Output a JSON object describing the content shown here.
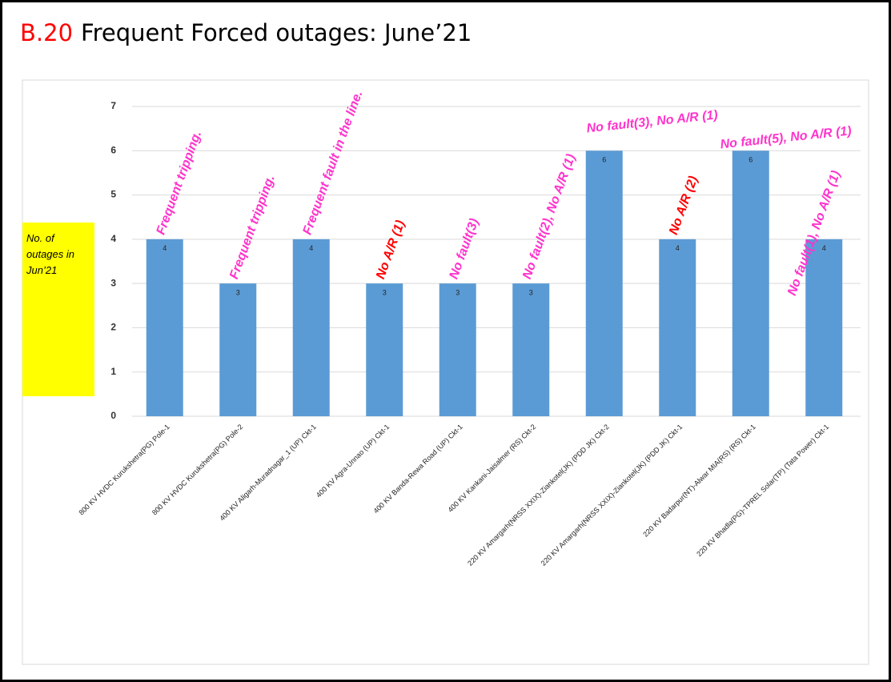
{
  "chart_data": {
    "type": "bar",
    "title_number": "B.20",
    "title": "Frequent Forced outages: June’21",
    "ylabel": "No. of outages in Jun’21",
    "categories": [
      "800 KV HVDC Kurukshetra(PG) Pole-1",
      "800 KV HVDC Kurukshetra(PG) Pole-2",
      "400 KV Aligarh-Muradnagar_1 (UP) Ckt-1",
      "400 KV Agra-Unnao (UP) Ckt-1",
      "400 KV Banda-Rewa Road (UP) Ckt-1",
      "400 KV Kankani-Jaisalmer (RS) Ckt-2",
      "220 KV Amargarh(NRSS XXIX)-Ziankotel(JK) (PDD JK) Ckt-2",
      "220 KV Amargarh(NRSS XXIX)-Ziankotel(JK) (PDD JK) Ckt-1",
      "220 KV Badarpur(NT)-Alwar MIA(RS) (RS) Ckt-1",
      "220 KV Bhadla(PG)-TPREL Solar(TP) (Tata Power) Ckt-1"
    ],
    "values": [
      4,
      3,
      4,
      3,
      3,
      3,
      6,
      4,
      6,
      4
    ],
    "color": "#5b9bd5",
    "annotations": [
      {
        "text": "Frequent tripping.",
        "color": "#ff33cc"
      },
      {
        "text": "Frequent tripping.",
        "color": "#ff33cc"
      },
      {
        "text": "Frequent fault in the line.",
        "color": "#ff33cc"
      },
      {
        "text": "No A/R (1)",
        "color": "#ff0000"
      },
      {
        "text": "No fault(3)",
        "color": "#ff33cc"
      },
      {
        "text": "No fault(2), No A/R (1)",
        "color": "#ff33cc"
      },
      {
        "text": "No fault(3), No A/R (1)",
        "color": "#ff33cc"
      },
      {
        "text": "No A/R (2)",
        "color": "#ff0000"
      },
      {
        "text": "No fault(5), No A/R (1)",
        "color": "#ff33cc"
      },
      {
        "text": "No fault(1), No A/R (1)",
        "color": "#ff33cc"
      }
    ],
    "ylim": [
      0,
      7
    ],
    "yticks": [
      0,
      1,
      2,
      3,
      4,
      5,
      6,
      7
    ],
    "grid": true
  }
}
